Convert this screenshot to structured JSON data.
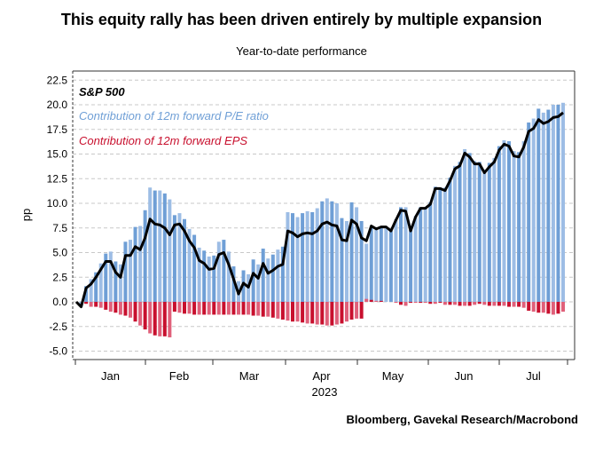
{
  "chart_data": {
    "type": "bar",
    "title": "This equity rally has been driven entirely by multiple expansion",
    "subtitle": "Year-to-date performance",
    "ylabel": "pp",
    "xlabel": "2023",
    "source": "Bloomberg, Gavekal Research/Macrobond",
    "ylim": [
      -5.9,
      23.4
    ],
    "yticks": [
      "22.5",
      "20.0",
      "17.5",
      "15.0",
      "12.5",
      "10.0",
      "7.5",
      "5.0",
      "2.5",
      "0.0",
      "-2.5",
      "-5.0"
    ],
    "ytick_values": [
      22.5,
      20,
      17.5,
      15,
      12.5,
      10,
      7.5,
      5,
      2.5,
      0,
      -2.5,
      -5
    ],
    "month_labels": [
      "Jan",
      "Feb",
      "Mar",
      "Apr",
      "May",
      "Jun",
      "Jul"
    ],
    "grid": true,
    "legend_placement": "top-left",
    "series": [
      {
        "name": "S&P 500",
        "type": "line",
        "color": "#000000",
        "values": [
          0.0,
          -0.5,
          1.4,
          1.8,
          2.5,
          3.3,
          4.1,
          4.1,
          3.0,
          2.5,
          4.7,
          4.7,
          5.6,
          5.3,
          6.5,
          8.4,
          7.9,
          7.8,
          7.5,
          6.8,
          7.8,
          7.9,
          7.2,
          6.2,
          5.5,
          4.2,
          3.9,
          3.3,
          3.4,
          4.8,
          5.0,
          3.8,
          2.3,
          0.8,
          1.9,
          1.5,
          2.9,
          2.4,
          3.9,
          2.9,
          3.2,
          3.6,
          3.8,
          7.2,
          7.0,
          6.6,
          6.9,
          7.0,
          6.9,
          7.2,
          7.9,
          8.1,
          7.8,
          7.7,
          6.3,
          6.2,
          8.3,
          7.9,
          6.5,
          6.2,
          7.7,
          7.4,
          7.6,
          7.6,
          7.2,
          8.3,
          9.3,
          9.2,
          7.2,
          8.6,
          9.5,
          9.5,
          9.9,
          11.5,
          11.5,
          11.3,
          12.3,
          13.5,
          13.8,
          15.1,
          14.7,
          14.0,
          14.0,
          13.1,
          13.7,
          14.2,
          15.4,
          16.0,
          15.8,
          14.8,
          14.7,
          15.7,
          17.3,
          17.6,
          18.5,
          18.1,
          18.3,
          18.7,
          18.8,
          19.2
        ]
      },
      {
        "name": "Contribution of 12m forward P/E ratio",
        "type": "bar",
        "color": "#6f9fd6",
        "values": [
          0.0,
          -0.5,
          1.6,
          2.3,
          3.0,
          3.9,
          4.9,
          5.1,
          4.1,
          3.8,
          6.1,
          6.3,
          7.6,
          7.7,
          9.3,
          11.6,
          11.3,
          11.3,
          11.0,
          10.4,
          8.8,
          9.0,
          8.4,
          7.4,
          6.8,
          5.5,
          5.2,
          4.6,
          4.7,
          6.1,
          6.3,
          5.1,
          3.6,
          2.1,
          3.2,
          2.8,
          4.3,
          3.8,
          5.4,
          4.4,
          4.8,
          5.3,
          5.6,
          9.1,
          9.0,
          8.6,
          9.0,
          9.2,
          9.1,
          9.5,
          10.2,
          10.5,
          10.2,
          10.0,
          8.5,
          8.2,
          10.1,
          9.6,
          8.2,
          5.9,
          7.5,
          7.3,
          7.5,
          7.6,
          7.2,
          8.4,
          9.6,
          9.6,
          7.3,
          8.7,
          9.6,
          9.6,
          10.1,
          11.7,
          11.6,
          11.6,
          12.6,
          13.8,
          14.2,
          15.5,
          15.1,
          14.3,
          14.2,
          13.4,
          14.1,
          14.6,
          15.8,
          16.4,
          16.3,
          15.3,
          15.2,
          16.3,
          18.2,
          18.6,
          19.6,
          19.2,
          19.5,
          20.0,
          20.0,
          20.2
        ]
      },
      {
        "name": "Contribution of 12m forward EPS",
        "type": "bar",
        "color": "#c8102e",
        "values": [
          0,
          0,
          -0.2,
          -0.5,
          -0.5,
          -0.6,
          -0.8,
          -1.0,
          -1.1,
          -1.3,
          -1.4,
          -1.6,
          -2.0,
          -2.4,
          -2.8,
          -3.2,
          -3.4,
          -3.5,
          -3.5,
          -3.6,
          -1.0,
          -1.1,
          -1.2,
          -1.2,
          -1.3,
          -1.3,
          -1.3,
          -1.3,
          -1.3,
          -1.3,
          -1.3,
          -1.3,
          -1.3,
          -1.3,
          -1.3,
          -1.3,
          -1.4,
          -1.4,
          -1.5,
          -1.5,
          -1.6,
          -1.7,
          -1.8,
          -1.9,
          -2.0,
          -2.0,
          -2.1,
          -2.2,
          -2.2,
          -2.3,
          -2.3,
          -2.4,
          -2.4,
          -2.3,
          -2.2,
          -2.0,
          -1.8,
          -1.7,
          -1.7,
          0.3,
          0.2,
          0.1,
          0.1,
          0.0,
          0.0,
          -0.1,
          -0.3,
          -0.4,
          -0.1,
          -0.1,
          -0.1,
          -0.1,
          -0.2,
          -0.2,
          -0.1,
          -0.3,
          -0.3,
          -0.3,
          -0.4,
          -0.4,
          -0.4,
          -0.3,
          -0.2,
          -0.3,
          -0.4,
          -0.4,
          -0.4,
          -0.4,
          -0.5,
          -0.5,
          -0.5,
          -0.6,
          -0.9,
          -1.0,
          -1.1,
          -1.1,
          -1.2,
          -1.3,
          -1.2,
          -1.0
        ]
      }
    ]
  }
}
